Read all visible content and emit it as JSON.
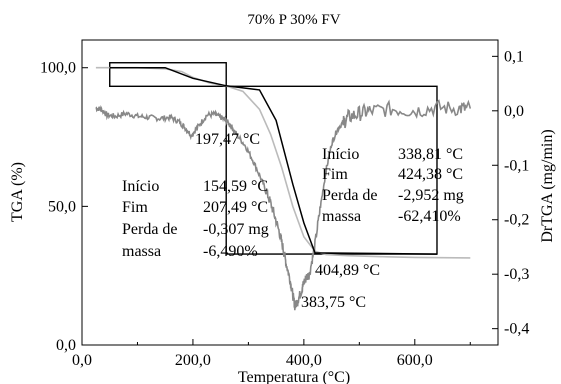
{
  "chart_data": {
    "type": "line",
    "title": "70% P 30% FV",
    "xlabel": "Temperatura (°C)",
    "ylabel": "TGA (%)",
    "y2label": "DrTGA (mg/min)",
    "xlim": [
      0,
      750
    ],
    "ylim": [
      0,
      110
    ],
    "y2lim": [
      -0.43,
      0.13
    ],
    "x_ticks": [
      "0,0",
      "200,0",
      "400,0",
      "600,0"
    ],
    "x_tick_values": [
      0,
      200,
      400,
      600
    ],
    "y_ticks": [
      "0,0",
      "50,0",
      "100,0"
    ],
    "y_tick_values": [
      0,
      50,
      100
    ],
    "y2_ticks": [
      "0,1",
      "0,0",
      "-0,1",
      "-0,2",
      "-0,3",
      "-0,4"
    ],
    "y2_tick_values": [
      0.1,
      0.0,
      -0.1,
      -0.2,
      -0.3,
      -0.4
    ],
    "grid": false,
    "series": [
      {
        "axis": "left",
        "color": "#bbbbbb",
        "x": [
          25,
          50,
          100,
          150,
          180,
          200,
          230,
          260,
          290,
          320,
          340,
          360,
          380,
          400,
          420,
          440,
          480,
          550,
          600,
          650,
          700
        ],
        "y": [
          100,
          100,
          100,
          99.6,
          98.6,
          96.5,
          94.5,
          93.4,
          91.5,
          85,
          76,
          64,
          50,
          39,
          33.8,
          32.6,
          32.2,
          31.8,
          31.6,
          31.5,
          31.4
        ]
      },
      {
        "axis": "right",
        "color": "#888888",
        "x": [
          25,
          35,
          45,
          60,
          80,
          100,
          120,
          140,
          160,
          175,
          185,
          197,
          210,
          225,
          240,
          250,
          260,
          270,
          280,
          295,
          310,
          325,
          335,
          345,
          355,
          362,
          368,
          375,
          380,
          384,
          390,
          396,
          400,
          405,
          410,
          420,
          430,
          440,
          450,
          460,
          470,
          480,
          500,
          520,
          560,
          600,
          640,
          680,
          700
        ],
        "y": [
          0.005,
          0.003,
          -0.008,
          -0.01,
          -0.005,
          -0.01,
          -0.012,
          -0.014,
          -0.012,
          -0.02,
          -0.03,
          -0.045,
          -0.028,
          -0.008,
          -0.006,
          -0.012,
          -0.018,
          -0.03,
          -0.045,
          -0.065,
          -0.095,
          -0.13,
          -0.155,
          -0.185,
          -0.22,
          -0.25,
          -0.28,
          -0.31,
          -0.338,
          -0.36,
          -0.345,
          -0.33,
          -0.315,
          -0.305,
          -0.3,
          -0.245,
          -0.175,
          -0.11,
          -0.06,
          -0.035,
          -0.022,
          -0.012,
          -0.005,
          0.0,
          0.003,
          0.0,
          0.006,
          0.004,
          0.005
        ]
      },
      {
        "axis": "left",
        "color": "#000000",
        "x": [
          50,
          150,
          200,
          260,
          320,
          350,
          380,
          400,
          420,
          640
        ],
        "y": [
          100,
          100,
          96.2,
          93.5,
          92,
          81,
          58,
          44,
          33.2,
          32.8
        ]
      }
    ],
    "boxes": [
      {
        "x": [
          50,
          260
        ],
        "y": [
          93.3,
          101.8
        ]
      },
      {
        "x": [
          260,
          640
        ],
        "y": [
          32.8,
          93.3
        ]
      }
    ],
    "annotations": [
      {
        "text": "197,47 °C"
      },
      {
        "text": "383,75 °C"
      },
      {
        "text": "404,89 °C"
      },
      {
        "lines": [
          "Início",
          "Fim",
          "Perda de",
          "massa"
        ],
        "values": [
          "154,59 °C",
          "207,49 °C",
          "-0,307 mg",
          "-6,490%"
        ]
      },
      {
        "lines": [
          "Início",
          "Fim",
          "Perda de",
          "massa"
        ],
        "values": [
          "338,81 °C",
          "424,38 °C",
          "-2,952 mg",
          "-62,410%"
        ]
      }
    ]
  }
}
